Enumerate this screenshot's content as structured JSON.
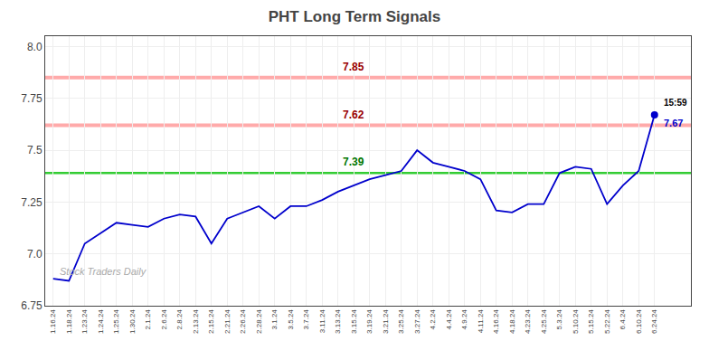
{
  "chart_data": {
    "type": "line",
    "title": "PHT Long Term Signals",
    "categories": [
      "1.16.24",
      "1.18.24",
      "1.23.24",
      "1.24.24",
      "1.25.24",
      "1.30.24",
      "2.1.24",
      "2.6.24",
      "2.8.24",
      "2.13.24",
      "2.15.24",
      "2.21.24",
      "2.26.24",
      "2.28.24",
      "3.1.24",
      "3.5.24",
      "3.7.24",
      "3.11.24",
      "3.13.24",
      "3.15.24",
      "3.19.24",
      "3.21.24",
      "3.25.24",
      "3.27.24",
      "4.2.24",
      "4.4.24",
      "4.9.24",
      "4.11.24",
      "4.16.24",
      "4.18.24",
      "4.23.24",
      "4.25.24",
      "5.3.24",
      "5.10.24",
      "5.15.24",
      "5.22.24",
      "6.4.24",
      "6.10.24",
      "6.24.24"
    ],
    "values": [
      6.88,
      6.87,
      7.05,
      7.1,
      7.15,
      7.14,
      7.13,
      7.17,
      7.19,
      7.18,
      7.05,
      7.17,
      7.2,
      7.23,
      7.17,
      7.23,
      7.23,
      7.26,
      7.3,
      7.33,
      7.36,
      7.38,
      7.4,
      7.5,
      7.44,
      7.42,
      7.4,
      7.36,
      7.21,
      7.2,
      7.24,
      7.24,
      7.39,
      7.42,
      7.41,
      7.24,
      7.33,
      7.4,
      7.67
    ],
    "color": "#0000cc",
    "ylim": [
      6.75,
      8.05
    ],
    "yticks": [
      6.75,
      {
        "value": 7.0,
        "label": "7.0"
      },
      7.25,
      7.5,
      7.75,
      {
        "value": 8.0,
        "label": "8.0"
      }
    ],
    "grid": true,
    "reference_lines": [
      {
        "value": 7.85,
        "color": "#ffaaaa",
        "label_color": "#990000"
      },
      {
        "value": 7.62,
        "color": "#ffaaaa",
        "label_color": "#990000"
      },
      {
        "value": 7.39,
        "color": "#33cc33",
        "label_color": "#007700"
      }
    ],
    "reference_label_category": "3.15.24",
    "last_point": {
      "value": 7.67,
      "label": "15:59",
      "marker": "circle"
    },
    "watermark": "Stock Traders Daily"
  }
}
